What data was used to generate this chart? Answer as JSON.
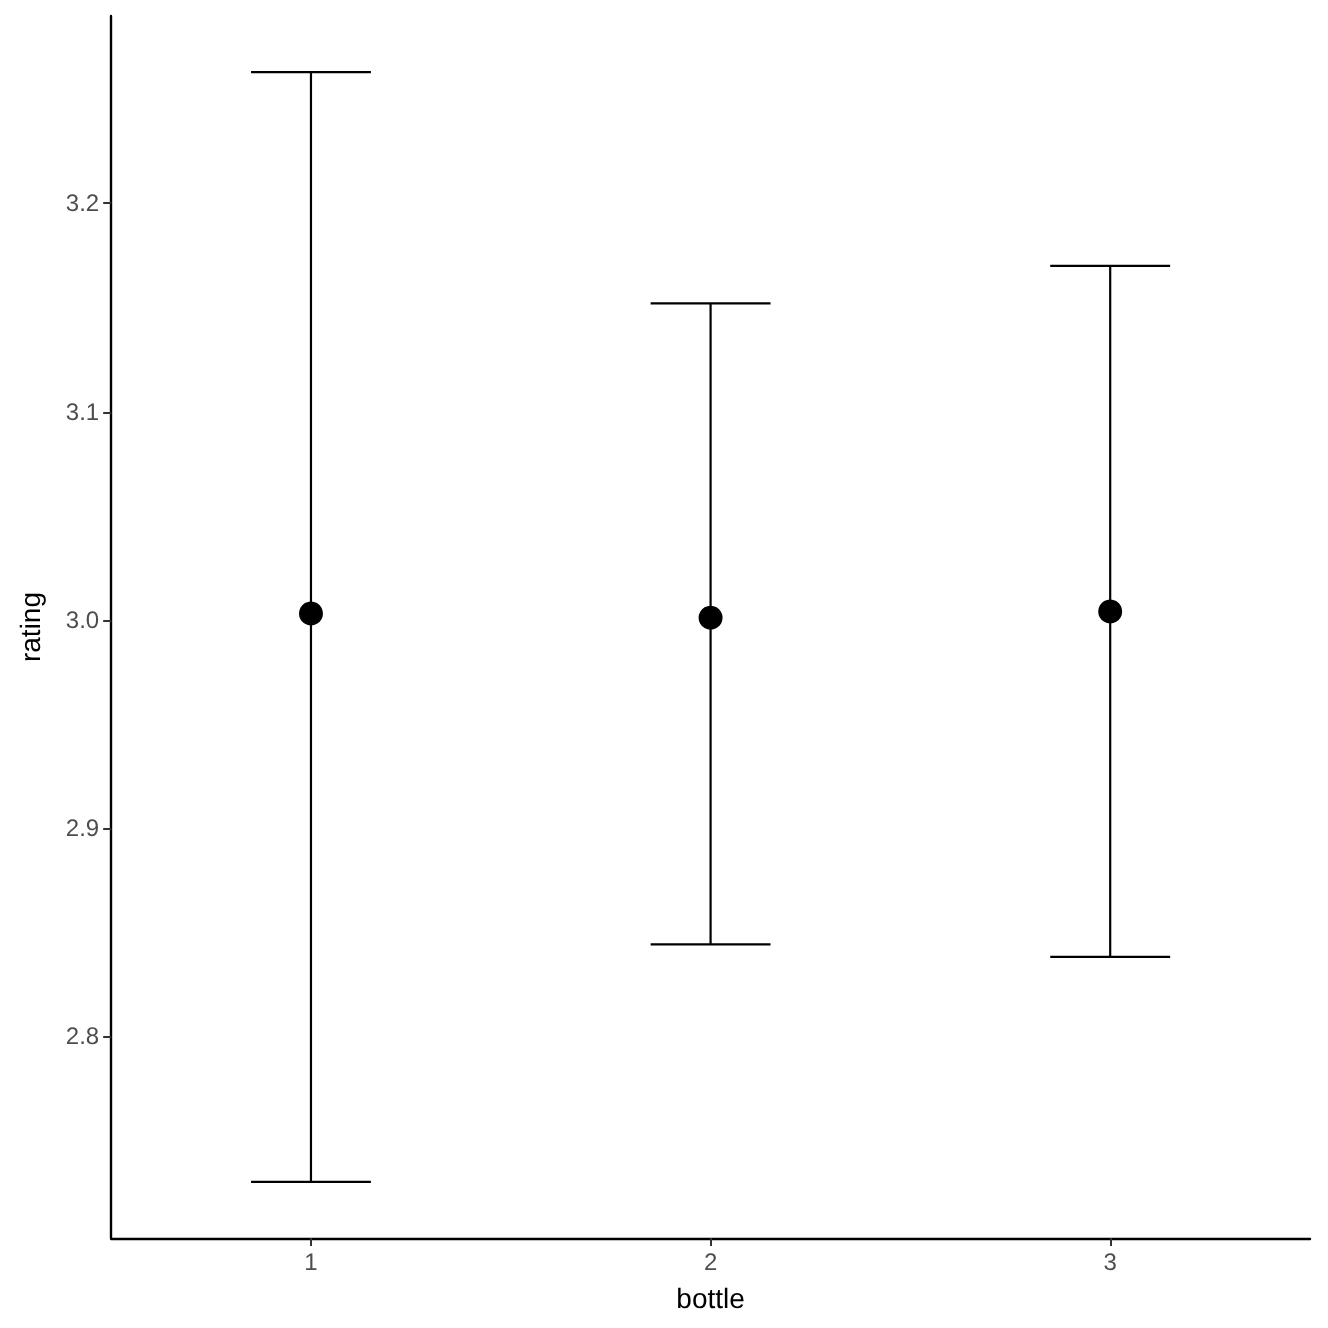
{
  "chart_data": {
    "type": "scatter",
    "xlabel": "bottle",
    "ylabel": "rating",
    "categories": [
      "1",
      "2",
      "3"
    ],
    "values": [
      3.003,
      3.001,
      3.004
    ],
    "color": "#000000",
    "errors": [
      [
        2.73,
        3.263
      ],
      [
        2.844,
        3.152
      ],
      [
        2.838,
        3.17
      ]
    ],
    "marker": "circle",
    "ylim": [
      2.703,
      3.29
    ],
    "yticks": [
      2.8,
      2.9,
      {
        "value": 3,
        "label": "3.0"
      },
      3.1,
      3.2
    ]
  }
}
